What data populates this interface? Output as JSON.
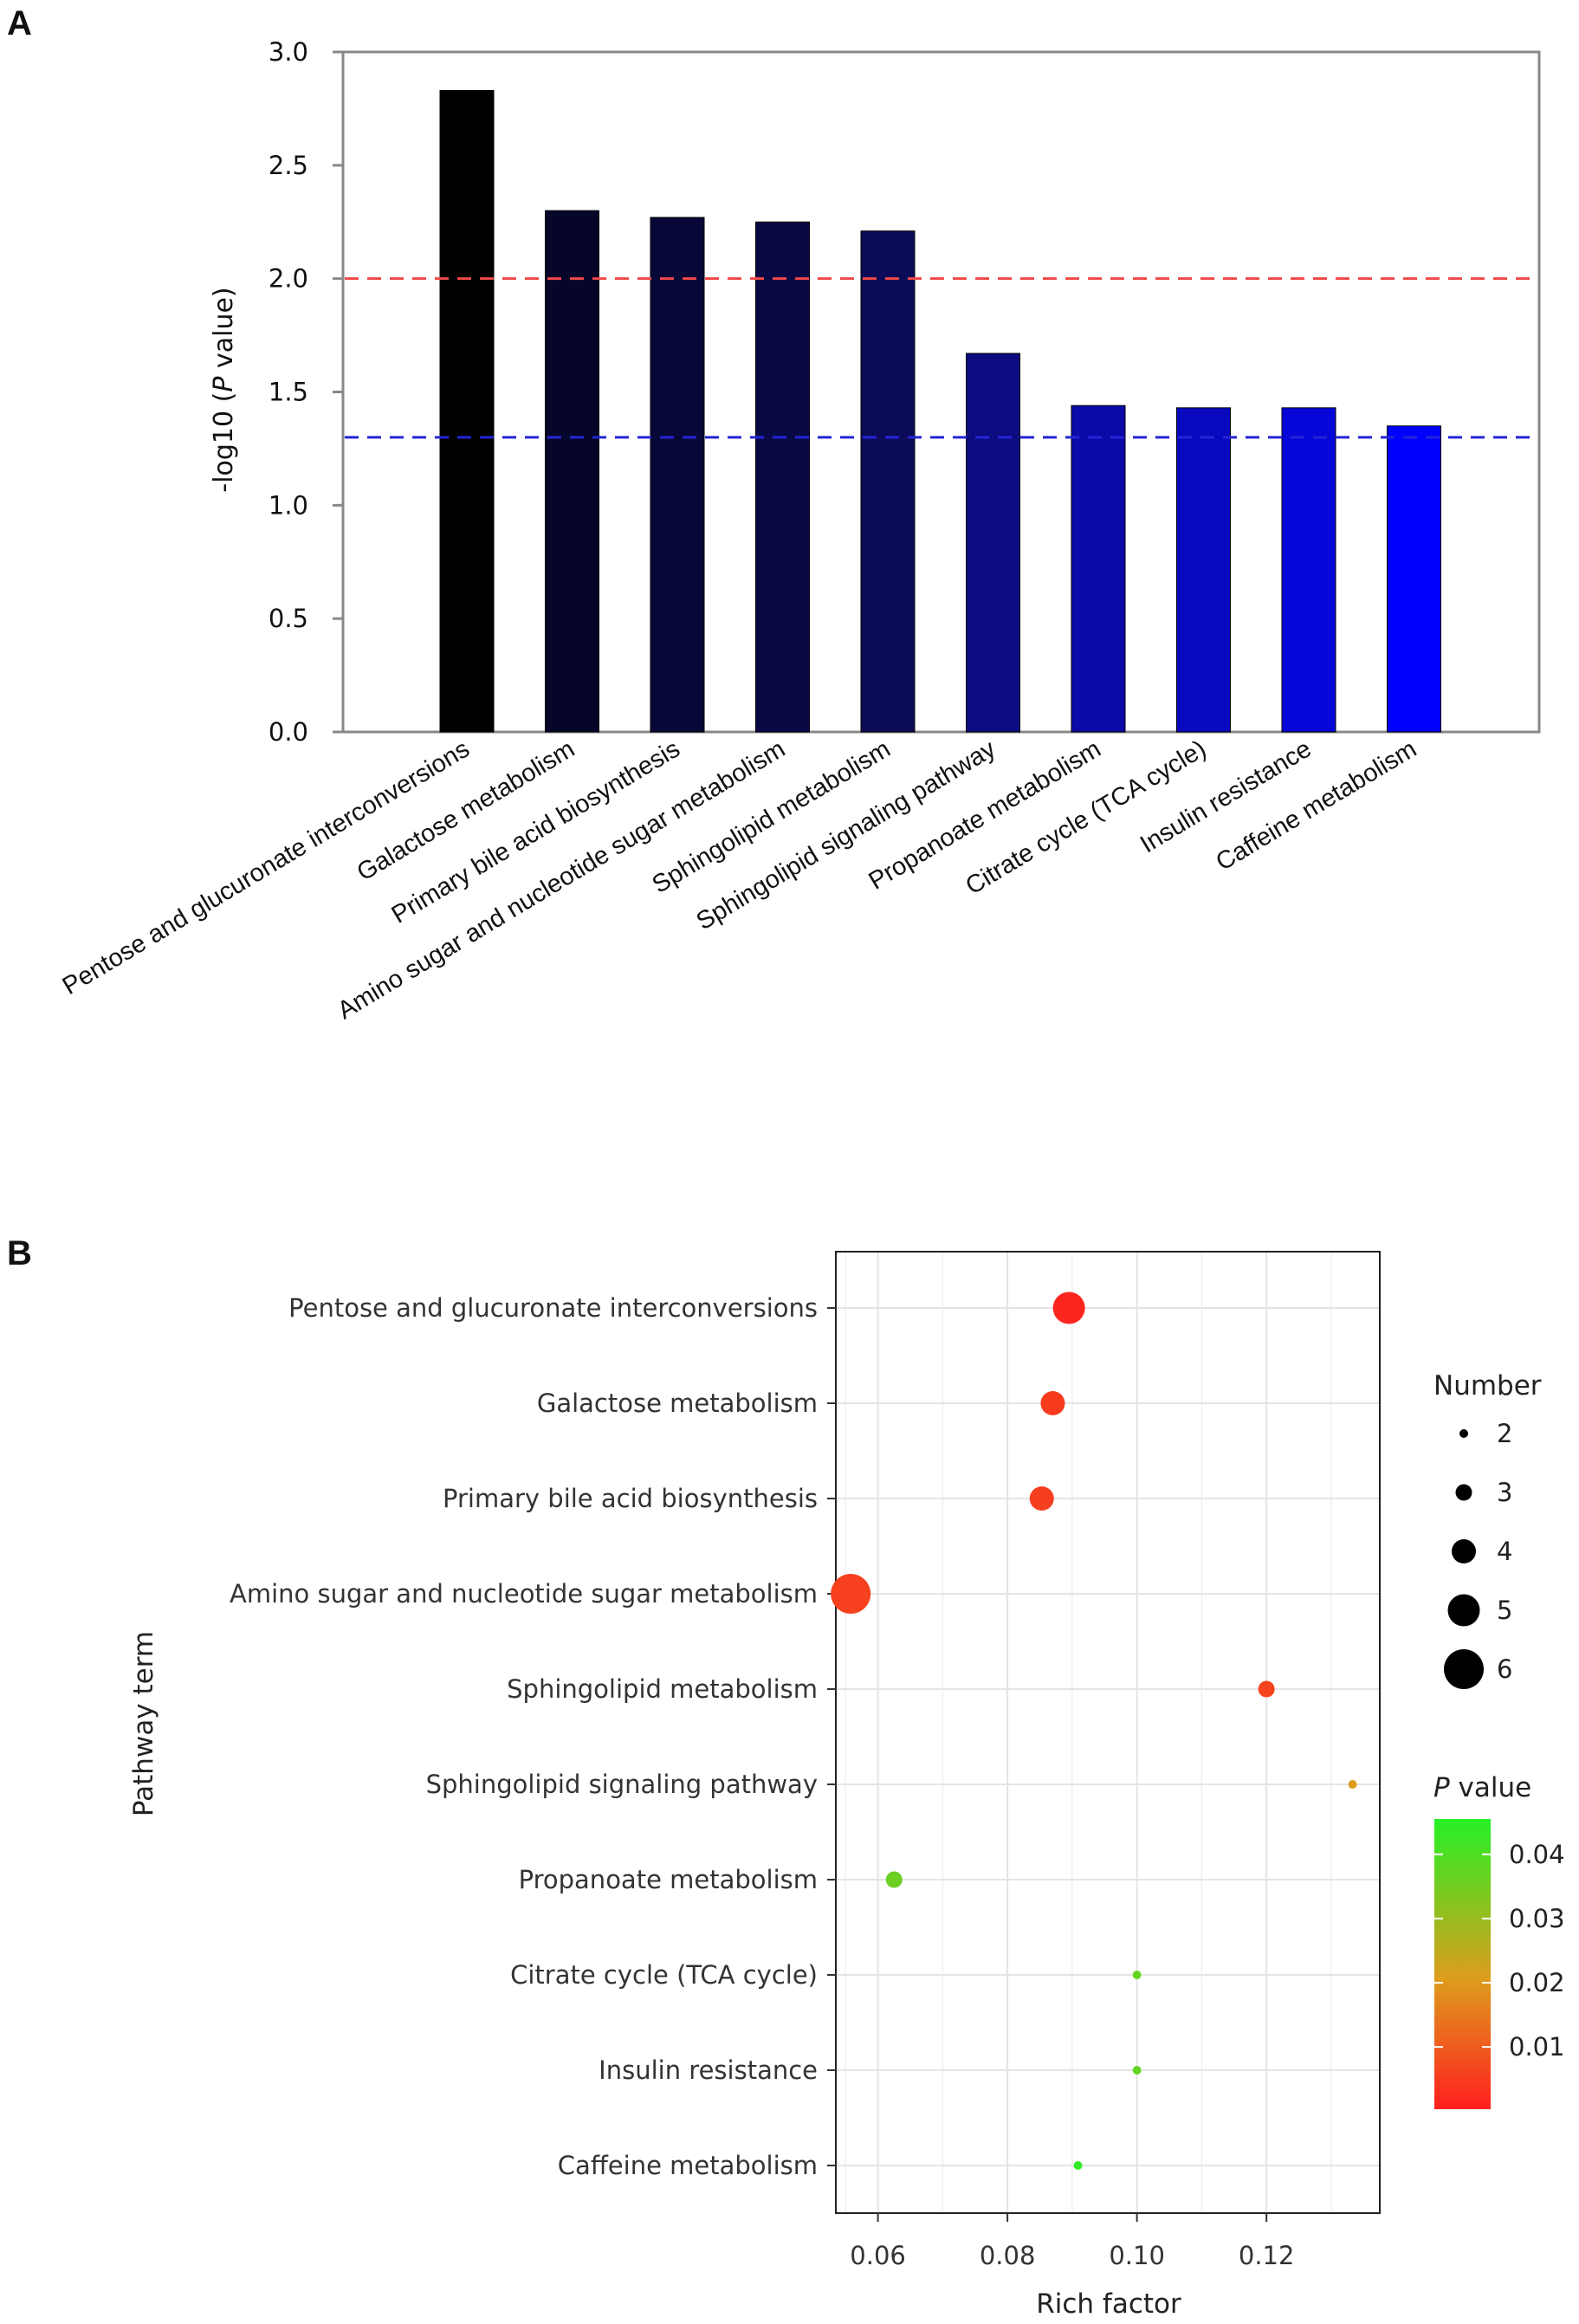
{
  "panels": {
    "a": "A",
    "b": "B"
  },
  "chart_data": [
    {
      "type": "bar",
      "panel": "A",
      "ylabel_parts": [
        "-log10 (",
        "P",
        " value)"
      ],
      "ylim": [
        0,
        3.0
      ],
      "yticks": [
        "0.0",
        "0.5",
        "1.0",
        "1.5",
        "2.0",
        "2.5",
        "3.0"
      ],
      "categories": [
        "Pentose and glucuronate interconversions",
        "Galactose metabolism",
        "Primary bile acid biosynthesis",
        "Amino sugar and nucleotide sugar metabolism",
        "Sphingolipid metabolism",
        "Sphingolipid signaling pathway",
        "Propanoate metabolism",
        "Citrate cycle (TCA cycle)",
        "Insulin resistance",
        "Caffeine metabolism"
      ],
      "values": [
        2.83,
        2.3,
        2.27,
        2.25,
        2.21,
        1.67,
        1.44,
        1.43,
        1.43,
        1.35
      ],
      "bar_colors": [
        "#000000",
        "#06062a",
        "#080838",
        "#090945",
        "#0b0b58",
        "#0c0c80",
        "#0a0aa8",
        "#0909c0",
        "#0606d8",
        "#0000ff"
      ],
      "reference_lines": [
        {
          "y": 2.0,
          "color": "#f04848",
          "style": "dashed"
        },
        {
          "y": 1.3,
          "color": "#2424d8",
          "style": "dashed"
        }
      ],
      "grid": false
    },
    {
      "type": "scatter",
      "panel": "B",
      "xlabel": "Rich factor",
      "ylabel": "Pathway term",
      "xlim": [
        0.0535,
        0.1375
      ],
      "xticks": [
        "0.06",
        "0.08",
        "0.10",
        "0.12"
      ],
      "grid": true,
      "categories": [
        "Pentose and glucuronate interconversions",
        "Galactose metabolism",
        "Primary bile acid biosynthesis",
        "Amino sugar and nucleotide sugar metabolism",
        "Sphingolipid metabolism",
        "Sphingolipid signaling pathway",
        "Propanoate metabolism",
        "Citrate cycle (TCA cycle)",
        "Insulin resistance",
        "Caffeine metabolism"
      ],
      "points": [
        {
          "x": 0.0895,
          "number": 5,
          "p": 0.0015
        },
        {
          "x": 0.087,
          "number": 4,
          "p": 0.005
        },
        {
          "x": 0.0853,
          "number": 4,
          "p": 0.0055
        },
        {
          "x": 0.0558,
          "number": 6,
          "p": 0.0057
        },
        {
          "x": 0.12,
          "number": 3,
          "p": 0.0063
        },
        {
          "x": 0.1333,
          "number": 2,
          "p": 0.0205
        },
        {
          "x": 0.0625,
          "number": 3,
          "p": 0.036
        },
        {
          "x": 0.1,
          "number": 2,
          "p": 0.037
        },
        {
          "x": 0.1,
          "number": 2,
          "p": 0.037
        },
        {
          "x": 0.0909,
          "number": 2,
          "p": 0.044
        }
      ],
      "size_legend": {
        "title": "Number",
        "levels": [
          "2",
          "3",
          "4",
          "5",
          "6"
        ]
      },
      "color_legend": {
        "title_parts": [
          "P",
          " value"
        ],
        "ticks": [
          "0.04",
          "0.03",
          "0.02",
          "0.01"
        ],
        "p_range": [
          0.0003,
          0.0455
        ],
        "colors": [
          "#ff1f1f",
          "#dd9d1c",
          "#25f025"
        ]
      }
    }
  ]
}
